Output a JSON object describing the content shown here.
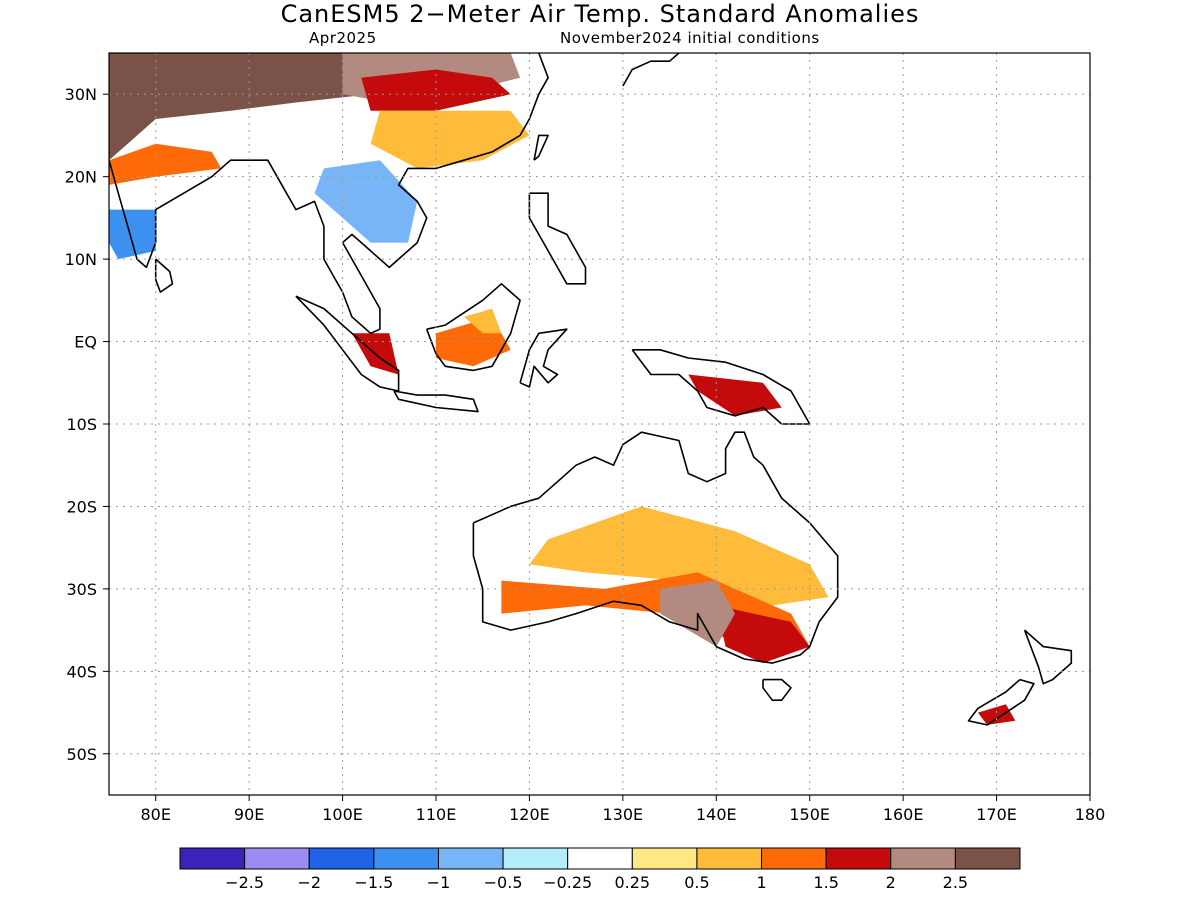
{
  "header": {
    "title": "CanESM5 2−Meter Air Temp. Standard Anomalies",
    "valid_month": "Apr2025",
    "initial_conditions": "November2024 initial conditions"
  },
  "map": {
    "lon_range": [
      75,
      180
    ],
    "lat_range": [
      -55,
      35
    ],
    "lon_ticks": [
      {
        "value": 80,
        "label": "80E"
      },
      {
        "value": 90,
        "label": "90E"
      },
      {
        "value": 100,
        "label": "100E"
      },
      {
        "value": 110,
        "label": "110E"
      },
      {
        "value": 120,
        "label": "120E"
      },
      {
        "value": 130,
        "label": "130E"
      },
      {
        "value": 140,
        "label": "140E"
      },
      {
        "value": 150,
        "label": "150E"
      },
      {
        "value": 160,
        "label": "160E"
      },
      {
        "value": 170,
        "label": "170E"
      },
      {
        "value": 180,
        "label": "180"
      }
    ],
    "lat_ticks": [
      {
        "value": 30,
        "label": "30N"
      },
      {
        "value": 20,
        "label": "20N"
      },
      {
        "value": 10,
        "label": "10N"
      },
      {
        "value": 0,
        "label": "EQ"
      },
      {
        "value": -10,
        "label": "10S"
      },
      {
        "value": -20,
        "label": "20S"
      },
      {
        "value": -30,
        "label": "30S"
      },
      {
        "value": -40,
        "label": "40S"
      },
      {
        "value": -50,
        "label": "50S"
      }
    ],
    "grid": true,
    "grid_style": "dotted"
  },
  "colorbar": {
    "colors": [
      "#3c22b8",
      "#9c8cf2",
      "#1f64e6",
      "#3c91f0",
      "#78b5f7",
      "#b3edf9",
      "#ffffff",
      "#ffe884",
      "#ffbb3a",
      "#ff6a08",
      "#c40a0a",
      "#b38a80",
      "#7a5248"
    ],
    "labels": [
      "−2.5",
      "−2",
      "−1.5",
      "−1",
      "−0.5",
      "−0.25",
      "0.25",
      "0.5",
      "1",
      "1.5",
      "2",
      "2.5"
    ]
  },
  "regions": [
    {
      "name": "tibet-high-anomaly",
      "color": "#7a5248",
      "points": [
        [
          75,
          35
        ],
        [
          100,
          35
        ],
        [
          103,
          30
        ],
        [
          95,
          29
        ],
        [
          88,
          28
        ],
        [
          80,
          27
        ],
        [
          75,
          22
        ]
      ]
    },
    {
      "name": "tibet-mid-anomaly",
      "color": "#b38a80",
      "points": [
        [
          100,
          35
        ],
        [
          118,
          35
        ],
        [
          119,
          32
        ],
        [
          112,
          30
        ],
        [
          105,
          29
        ],
        [
          100,
          30
        ]
      ]
    },
    {
      "name": "east-china-anomaly",
      "color": "#c40a0a",
      "points": [
        [
          102,
          32
        ],
        [
          110,
          33
        ],
        [
          116,
          32
        ],
        [
          118,
          30
        ],
        [
          110,
          28
        ],
        [
          103,
          28
        ]
      ]
    },
    {
      "name": "south-china-anomaly",
      "color": "#ffbb3a",
      "points": [
        [
          104,
          28
        ],
        [
          118,
          28
        ],
        [
          120,
          25
        ],
        [
          115,
          22
        ],
        [
          108,
          21
        ],
        [
          103,
          24
        ]
      ]
    },
    {
      "name": "indochina-cold-anomaly",
      "color": "#78b5f7",
      "points": [
        [
          98,
          21
        ],
        [
          104,
          22
        ],
        [
          108,
          17
        ],
        [
          107,
          12
        ],
        [
          103,
          12
        ],
        [
          100,
          15
        ],
        [
          97,
          18
        ]
      ]
    },
    {
      "name": "india-cold-anomaly",
      "color": "#3c91f0",
      "points": [
        [
          75,
          16
        ],
        [
          80,
          16
        ],
        [
          80,
          11
        ],
        [
          76,
          10
        ],
        [
          75,
          12
        ]
      ]
    },
    {
      "name": "india-warm-band",
      "color": "#ff6a08",
      "points": [
        [
          75,
          22
        ],
        [
          80,
          24
        ],
        [
          86,
          23
        ],
        [
          87,
          21
        ],
        [
          80,
          20
        ],
        [
          75,
          19
        ]
      ]
    },
    {
      "name": "malaya-anomaly",
      "color": "#c40a0a",
      "points": [
        [
          101,
          1
        ],
        [
          105,
          1
        ],
        [
          106,
          -4
        ],
        [
          103,
          -3
        ]
      ]
    },
    {
      "name": "borneo-anomaly",
      "color": "#ff6a08",
      "points": [
        [
          110,
          1
        ],
        [
          116,
          3
        ],
        [
          118,
          -1
        ],
        [
          114,
          -3
        ],
        [
          110,
          -2
        ]
      ]
    },
    {
      "name": "borneo-north-anomaly",
      "color": "#ffbb3a",
      "points": [
        [
          113,
          3
        ],
        [
          116,
          4
        ],
        [
          117,
          1
        ],
        [
          115,
          1
        ]
      ]
    },
    {
      "name": "new-guinea-anomaly",
      "color": "#c40a0a",
      "points": [
        [
          137,
          -4
        ],
        [
          145,
          -5
        ],
        [
          147,
          -8
        ],
        [
          142,
          -9
        ],
        [
          138,
          -6
        ]
      ]
    },
    {
      "name": "australia-interior-warm",
      "color": "#ffbb3a",
      "points": [
        [
          122,
          -24
        ],
        [
          132,
          -20
        ],
        [
          142,
          -23
        ],
        [
          150,
          -27
        ],
        [
          152,
          -31
        ],
        [
          146,
          -32
        ],
        [
          136,
          -29
        ],
        [
          126,
          -28
        ],
        [
          120,
          -27
        ]
      ]
    },
    {
      "name": "australia-south-warm",
      "color": "#ff6a08",
      "points": [
        [
          117,
          -29
        ],
        [
          128,
          -30
        ],
        [
          138,
          -28
        ],
        [
          148,
          -33
        ],
        [
          150,
          -37
        ],
        [
          143,
          -37
        ],
        [
          135,
          -33
        ],
        [
          126,
          -32
        ],
        [
          117,
          -33
        ]
      ]
    },
    {
      "name": "australia-southeast-anomaly",
      "color": "#c40a0a",
      "points": [
        [
          140,
          -32
        ],
        [
          148,
          -34
        ],
        [
          150,
          -37
        ],
        [
          145,
          -39
        ],
        [
          141,
          -37
        ]
      ]
    },
    {
      "name": "australia-southeast-brown",
      "color": "#b38a80",
      "points": [
        [
          134,
          -30
        ],
        [
          140,
          -29
        ],
        [
          142,
          -33
        ],
        [
          140,
          -37
        ],
        [
          137,
          -35
        ],
        [
          134,
          -33
        ]
      ]
    },
    {
      "name": "nz-south-anomaly",
      "color": "#c40a0a",
      "points": [
        [
          168,
          -45
        ],
        [
          171,
          -44
        ],
        [
          172,
          -46
        ],
        [
          169,
          -46.5
        ]
      ]
    }
  ],
  "coastlines": [
    {
      "name": "india-coast",
      "points": [
        [
          75,
          22
        ],
        [
          76,
          18
        ],
        [
          77,
          14
        ],
        [
          78,
          10
        ],
        [
          79,
          9
        ],
        [
          80,
          12
        ],
        [
          80,
          16
        ],
        [
          83,
          18
        ],
        [
          86,
          20
        ],
        [
          88,
          22
        ],
        [
          90,
          22
        ],
        [
          92,
          22
        ],
        [
          94,
          18
        ],
        [
          95,
          16
        ],
        [
          97,
          17
        ],
        [
          98,
          14
        ],
        [
          98,
          10
        ],
        [
          99,
          8
        ],
        [
          100,
          6
        ],
        [
          101,
          3
        ],
        [
          103,
          1
        ],
        [
          104,
          1.5
        ],
        [
          104,
          4
        ],
        [
          103,
          6
        ],
        [
          102,
          8
        ],
        [
          100,
          12
        ],
        [
          101,
          13
        ],
        [
          102,
          12
        ],
        [
          103,
          11
        ],
        [
          105,
          9
        ],
        [
          106,
          10
        ],
        [
          108,
          12
        ],
        [
          109,
          15
        ],
        [
          108,
          17
        ],
        [
          106,
          19
        ],
        [
          107,
          21
        ],
        [
          109,
          21
        ],
        [
          110,
          21
        ],
        [
          113,
          22
        ],
        [
          116,
          23
        ],
        [
          119,
          25
        ],
        [
          120,
          27
        ],
        [
          121,
          30
        ],
        [
          122,
          32
        ],
        [
          121,
          35
        ]
      ]
    },
    {
      "name": "sri-lanka",
      "points": [
        [
          80,
          10
        ],
        [
          81.5,
          8.5
        ],
        [
          81.8,
          7
        ],
        [
          80.5,
          6
        ],
        [
          80,
          7.5
        ],
        [
          80,
          10
        ]
      ]
    },
    {
      "name": "sumatra",
      "points": [
        [
          95,
          5.5
        ],
        [
          98,
          4
        ],
        [
          101,
          1
        ],
        [
          104,
          -2
        ],
        [
          106,
          -3.5
        ],
        [
          106,
          -6
        ],
        [
          104,
          -5.5
        ],
        [
          102,
          -4
        ],
        [
          100,
          -1
        ],
        [
          98,
          2
        ],
        [
          95,
          5.5
        ]
      ]
    },
    {
      "name": "java",
      "points": [
        [
          105.5,
          -6
        ],
        [
          108,
          -6.5
        ],
        [
          111,
          -6.5
        ],
        [
          114,
          -7
        ],
        [
          114.5,
          -8.5
        ],
        [
          110,
          -8
        ],
        [
          106,
          -7
        ],
        [
          105.5,
          -6
        ]
      ]
    },
    {
      "name": "borneo",
      "points": [
        [
          109,
          1.5
        ],
        [
          111,
          2
        ],
        [
          113,
          3.5
        ],
        [
          115,
          5
        ],
        [
          117,
          7
        ],
        [
          119,
          5
        ],
        [
          118,
          1
        ],
        [
          117,
          -1
        ],
        [
          116,
          -3
        ],
        [
          114,
          -3.5
        ],
        [
          111,
          -3
        ],
        [
          110,
          -1.5
        ],
        [
          109,
          1.5
        ]
      ]
    },
    {
      "name": "sulawesi",
      "points": [
        [
          119,
          -5
        ],
        [
          120,
          -1
        ],
        [
          121,
          1
        ],
        [
          124,
          1.5
        ],
        [
          122,
          -1
        ],
        [
          121.5,
          -3
        ],
        [
          123,
          -4
        ],
        [
          122,
          -5
        ],
        [
          120.5,
          -3
        ],
        [
          120,
          -5.5
        ],
        [
          119,
          -5
        ]
      ]
    },
    {
      "name": "philippines",
      "points": [
        [
          120,
          18
        ],
        [
          122,
          18
        ],
        [
          122,
          14
        ],
        [
          124,
          13
        ],
        [
          126,
          9
        ],
        [
          126,
          7
        ],
        [
          124,
          7
        ],
        [
          123,
          9
        ],
        [
          121,
          13
        ],
        [
          120,
          15
        ],
        [
          120,
          18
        ]
      ]
    },
    {
      "name": "new-guinea",
      "points": [
        [
          131,
          -1
        ],
        [
          134,
          -1
        ],
        [
          137,
          -2
        ],
        [
          141,
          -2.5
        ],
        [
          145,
          -4
        ],
        [
          148,
          -6
        ],
        [
          150,
          -10
        ],
        [
          147,
          -10
        ],
        [
          145,
          -8
        ],
        [
          142,
          -9
        ],
        [
          139,
          -8
        ],
        [
          138,
          -6
        ],
        [
          136,
          -4
        ],
        [
          133,
          -4
        ],
        [
          131,
          -1
        ]
      ]
    },
    {
      "name": "australia",
      "points": [
        [
          114,
          -22
        ],
        [
          114,
          -26
        ],
        [
          115,
          -30
        ],
        [
          115,
          -34
        ],
        [
          118,
          -35
        ],
        [
          122,
          -34
        ],
        [
          125,
          -33
        ],
        [
          129,
          -31.5
        ],
        [
          132,
          -32
        ],
        [
          135,
          -34
        ],
        [
          138,
          -35
        ],
        [
          138,
          -33
        ],
        [
          140,
          -37
        ],
        [
          143,
          -38.5
        ],
        [
          146,
          -39
        ],
        [
          149,
          -38
        ],
        [
          150,
          -37
        ],
        [
          151,
          -34
        ],
        [
          153,
          -31
        ],
        [
          153,
          -26
        ],
        [
          150,
          -22
        ],
        [
          147,
          -19
        ],
        [
          146,
          -17
        ],
        [
          145,
          -15
        ],
        [
          144,
          -14
        ],
        [
          143,
          -11
        ],
        [
          142,
          -11
        ],
        [
          141,
          -13
        ],
        [
          141,
          -16
        ],
        [
          139,
          -17
        ],
        [
          137,
          -16
        ],
        [
          136,
          -12
        ],
        [
          134,
          -11.5
        ],
        [
          132,
          -11
        ],
        [
          130,
          -12.5
        ],
        [
          129,
          -15
        ],
        [
          127,
          -14
        ],
        [
          125,
          -15
        ],
        [
          123,
          -17
        ],
        [
          121,
          -19
        ],
        [
          118,
          -20
        ],
        [
          116,
          -21
        ],
        [
          114,
          -22
        ]
      ]
    },
    {
      "name": "tasmania",
      "points": [
        [
          145,
          -41
        ],
        [
          147,
          -41
        ],
        [
          148,
          -42
        ],
        [
          147,
          -43.5
        ],
        [
          146,
          -43.5
        ],
        [
          145,
          -42
        ],
        [
          145,
          -41
        ]
      ]
    },
    {
      "name": "nz-north",
      "points": [
        [
          173,
          -35
        ],
        [
          175,
          -37
        ],
        [
          178,
          -37.5
        ],
        [
          178,
          -39
        ],
        [
          176,
          -41
        ],
        [
          175,
          -41.5
        ],
        [
          174.5,
          -39.5
        ],
        [
          174,
          -38
        ],
        [
          173,
          -35
        ]
      ]
    },
    {
      "name": "nz-south",
      "points": [
        [
          172.5,
          -41
        ],
        [
          174,
          -41.5
        ],
        [
          173,
          -43.5
        ],
        [
          171,
          -45
        ],
        [
          169,
          -46.5
        ],
        [
          167,
          -46
        ],
        [
          168,
          -44.5
        ],
        [
          171,
          -42.5
        ],
        [
          172.5,
          -41
        ]
      ]
    },
    {
      "name": "japan",
      "points": [
        [
          130,
          31
        ],
        [
          131,
          33
        ],
        [
          133,
          34
        ],
        [
          135,
          34
        ],
        [
          136,
          35
        ]
      ]
    },
    {
      "name": "taiwan",
      "points": [
        [
          120.5,
          22
        ],
        [
          121,
          25
        ],
        [
          122,
          25
        ],
        [
          121,
          22.5
        ],
        [
          120.5,
          22
        ]
      ]
    }
  ]
}
